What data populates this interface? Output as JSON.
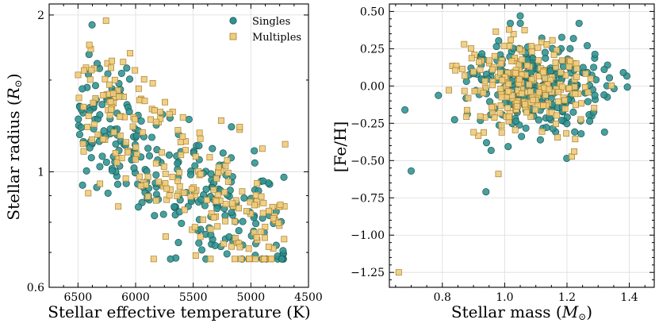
{
  "colors": {
    "singles_fill": "#2e9390",
    "singles_edge": "#1b5654",
    "multiples_fill": "#f0cc7d",
    "multiples_edge": "#a7802e"
  },
  "chart_data": [
    {
      "type": "scatter",
      "xlabel": "Stellar effective temperature (K)",
      "ylabel_text": "Stellar radius (",
      "ylabel_unit": "R",
      "ylabel_sub": "⊙",
      "ylabel_close": ")",
      "xlim": [
        6750,
        4500
      ],
      "ylim": [
        0.6,
        2.1
      ],
      "yscale": "log",
      "grid": true,
      "xticks": [
        6500,
        6000,
        5500,
        5000,
        4500
      ],
      "yticks": [
        0.6,
        1,
        2
      ],
      "ytick_labels": [
        "0.6",
        "1",
        "2"
      ],
      "legend": {
        "location": "top-right",
        "entries": [
          "Singles",
          "Multiples"
        ]
      },
      "series": [
        {
          "name": "Singles",
          "marker": "circle",
          "n": 260,
          "trend": [
            [
              6500,
              1.3
            ],
            [
              6200,
              1.25
            ],
            [
              6000,
              1.12
            ],
            [
              5800,
              1.0
            ],
            [
              5500,
              0.92
            ],
            [
              5200,
              0.85
            ],
            [
              5000,
              0.8
            ],
            [
              4800,
              0.76
            ],
            [
              4700,
              0.72
            ]
          ],
          "x_range": [
            4700,
            6500
          ],
          "scatter_pct": 0.14
        },
        {
          "name": "Multiples",
          "marker": "square",
          "n": 220,
          "trend": [
            [
              6500,
              1.4
            ],
            [
              6200,
              1.3
            ],
            [
              6000,
              1.15
            ],
            [
              5800,
              1.03
            ],
            [
              5500,
              0.93
            ],
            [
              5200,
              0.86
            ],
            [
              5000,
              0.8
            ],
            [
              4800,
              0.76
            ],
            [
              4700,
              0.73
            ]
          ],
          "x_range": [
            4700,
            6500
          ],
          "scatter_pct": 0.16
        }
      ]
    },
    {
      "type": "scatter",
      "xlabel_text": "Stellar mass (",
      "xlabel_unit": "M",
      "xlabel_sub": "⊙",
      "xlabel_close": ")",
      "ylabel": "[Fe/H]",
      "xlim": [
        0.63,
        1.48
      ],
      "ylim": [
        -1.35,
        0.55
      ],
      "grid": true,
      "xticks": [
        0.8,
        1.0,
        1.2,
        1.4
      ],
      "xtick_labels": [
        "0.8",
        "1.0",
        "1.2",
        "1.4"
      ],
      "yticks": [
        0.5,
        0.25,
        0.0,
        -0.25,
        -0.5,
        -0.75,
        -1.0,
        -1.25
      ],
      "ytick_labels": [
        "0.50",
        "0.25",
        "0.00",
        "−0.25",
        "−0.50",
        "−0.75",
        "−1.00",
        "−1.25"
      ],
      "series": [
        {
          "name": "Singles",
          "marker": "circle",
          "n": 260,
          "x_range": [
            0.66,
            1.45
          ],
          "feh_mean": 0.0,
          "feh_sd": 0.17,
          "outliers": [
            [
              0.94,
              -0.71
            ],
            [
              0.68,
              -0.16
            ],
            [
              0.7,
              -0.57
            ],
            [
              1.05,
              0.47
            ]
          ]
        },
        {
          "name": "Multiples",
          "marker": "square",
          "n": 220,
          "x_range": [
            0.66,
            1.4
          ],
          "feh_mean": 0.0,
          "feh_sd": 0.16,
          "outliers": [
            [
              0.66,
              -1.25
            ],
            [
              0.98,
              -0.59
            ],
            [
              0.87,
              0.28
            ]
          ]
        }
      ]
    }
  ]
}
